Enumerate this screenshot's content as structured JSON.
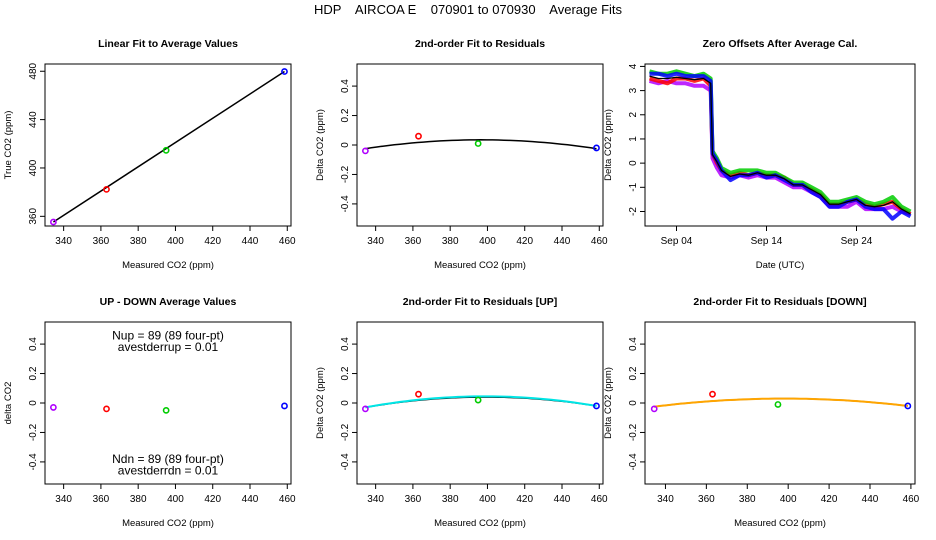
{
  "title": "HDP    AIRCOA E    070901 to 070930    Average Fits",
  "colors": {
    "purple": "#b000ff",
    "red": "#ff0000",
    "green": "#00cc00",
    "blue": "#0000ff",
    "black": "#000000",
    "cyan": "#00e5e5",
    "orange": "#ffa500"
  },
  "chart_data": [
    {
      "id": "linear",
      "type": "scatter",
      "title": "Linear Fit to Average Values",
      "xlabel": "Measured CO2 (ppm)",
      "ylabel": "True CO2 (ppm)",
      "xlim": [
        330,
        462
      ],
      "ylim": [
        352,
        486
      ],
      "xticks": [
        340,
        360,
        380,
        400,
        420,
        440,
        460
      ],
      "yticks": [
        360,
        400,
        440,
        480
      ],
      "points": [
        {
          "x": 334.5,
          "y": 355.3,
          "c": "purple"
        },
        {
          "x": 363.0,
          "y": 382.3,
          "c": "red"
        },
        {
          "x": 395.0,
          "y": 414.6,
          "c": "green"
        },
        {
          "x": 458.5,
          "y": 479.8,
          "c": "blue"
        }
      ],
      "fit_lines": [
        {
          "c": "black",
          "x": [
            334.5,
            458.5
          ],
          "y": [
            355.3,
            479.8
          ]
        }
      ]
    },
    {
      "id": "resid",
      "type": "scatter",
      "title": "2nd-order Fit to Residuals",
      "xlabel": "Measured CO2 (ppm)",
      "ylabel": "Delta CO2 (ppm)",
      "xlim": [
        330,
        462
      ],
      "ylim": [
        -0.55,
        0.55
      ],
      "xticks": [
        340,
        360,
        380,
        400,
        420,
        440,
        460
      ],
      "yticks": [
        -0.4,
        -0.2,
        0.0,
        0.2,
        0.4
      ],
      "points": [
        {
          "x": 334.5,
          "y": -0.04,
          "c": "purple"
        },
        {
          "x": 363.0,
          "y": 0.06,
          "c": "red"
        },
        {
          "x": 395.0,
          "y": 0.01,
          "c": "green"
        },
        {
          "x": 458.5,
          "y": -0.02,
          "c": "blue"
        }
      ],
      "fit_lines": [
        {
          "c": "black",
          "x": [
            334.5,
            396.5,
            458.5
          ],
          "y": [
            -0.025,
            0.035,
            -0.025
          ]
        }
      ]
    },
    {
      "id": "zero",
      "type": "line",
      "title": "Zero Offsets After Average Cal.",
      "xlabel": "Date (UTC)",
      "ylabel": "Delta CO2 (ppm)",
      "xlim": [
        0.5,
        30.5
      ],
      "ylim": [
        -2.6,
        4.1
      ],
      "xticks": [
        {
          "v": 4,
          "label": "Sep 04"
        },
        {
          "v": 14,
          "label": "Sep 14"
        },
        {
          "v": 24,
          "label": "Sep 24"
        }
      ],
      "yticks": [
        -2,
        -1,
        0,
        1,
        2,
        3,
        4
      ],
      "series": [
        {
          "name": "purple",
          "c": "purple",
          "x": [
            1,
            2,
            3,
            4,
            5,
            6,
            7,
            7.8,
            8,
            8.5,
            9,
            10,
            11,
            12,
            13,
            14,
            15,
            16,
            17,
            18,
            19,
            20,
            21,
            22,
            23,
            24,
            25,
            26,
            27,
            28,
            29,
            30
          ],
          "y": [
            3.4,
            3.3,
            3.4,
            3.3,
            3.3,
            3.2,
            3.2,
            3.0,
            0.2,
            -0.2,
            -0.5,
            -0.6,
            -0.5,
            -0.6,
            -0.5,
            -0.6,
            -0.6,
            -0.8,
            -1.0,
            -1.0,
            -1.2,
            -1.4,
            -1.8,
            -1.8,
            -1.8,
            -1.6,
            -1.9,
            -1.9,
            -1.9,
            -1.8,
            -2.0,
            -2.1
          ]
        },
        {
          "name": "red",
          "c": "red",
          "x": [
            1,
            2,
            3,
            4,
            5,
            6,
            7,
            7.8,
            8,
            8.5,
            9,
            10,
            11,
            12,
            13,
            14,
            15,
            16,
            17,
            18,
            19,
            20,
            21,
            22,
            23,
            24,
            25,
            26,
            27,
            28,
            29,
            30
          ],
          "y": [
            3.5,
            3.4,
            3.3,
            3.5,
            3.5,
            3.4,
            3.5,
            3.2,
            0.4,
            0.0,
            -0.3,
            -0.5,
            -0.4,
            -0.5,
            -0.4,
            -0.5,
            -0.5,
            -0.6,
            -0.9,
            -0.9,
            -1.1,
            -1.3,
            -1.7,
            -1.7,
            -1.6,
            -1.5,
            -1.7,
            -1.8,
            -1.7,
            -1.6,
            -1.9,
            -2.1
          ]
        },
        {
          "name": "green",
          "c": "green",
          "x": [
            1,
            2,
            3,
            4,
            5,
            6,
            7,
            7.8,
            8,
            8.5,
            9,
            10,
            11,
            12,
            13,
            14,
            15,
            16,
            17,
            18,
            19,
            20,
            21,
            22,
            23,
            24,
            25,
            26,
            27,
            28,
            29,
            30
          ],
          "y": [
            3.8,
            3.7,
            3.7,
            3.8,
            3.7,
            3.6,
            3.7,
            3.5,
            0.5,
            0.2,
            -0.2,
            -0.4,
            -0.3,
            -0.3,
            -0.3,
            -0.4,
            -0.4,
            -0.6,
            -0.8,
            -0.8,
            -1.0,
            -1.2,
            -1.6,
            -1.6,
            -1.5,
            -1.4,
            -1.6,
            -1.7,
            -1.6,
            -1.4,
            -1.8,
            -2.0
          ]
        },
        {
          "name": "blue",
          "c": "blue",
          "x": [
            1,
            2,
            3,
            4,
            5,
            6,
            7,
            7.8,
            8,
            8.5,
            9,
            10,
            11,
            12,
            13,
            14,
            15,
            16,
            17,
            18,
            19,
            20,
            21,
            22,
            23,
            24,
            25,
            26,
            27,
            28,
            29,
            30
          ],
          "y": [
            3.7,
            3.7,
            3.6,
            3.7,
            3.6,
            3.6,
            3.6,
            3.4,
            0.4,
            0.1,
            -0.3,
            -0.7,
            -0.5,
            -0.5,
            -0.4,
            -0.6,
            -0.5,
            -0.7,
            -0.9,
            -0.9,
            -1.2,
            -1.4,
            -1.8,
            -1.8,
            -1.6,
            -1.5,
            -1.8,
            -1.9,
            -1.9,
            -2.3,
            -2.0,
            -2.2
          ]
        },
        {
          "name": "black",
          "c": "black",
          "x": [
            1,
            2,
            3,
            4,
            5,
            6,
            7,
            7.8,
            8,
            8.5,
            9,
            10,
            11,
            12,
            13,
            14,
            15,
            16,
            17,
            18,
            19,
            20,
            21,
            22,
            23,
            24,
            25,
            26,
            27,
            28,
            29,
            30
          ],
          "y": [
            3.6,
            3.5,
            3.5,
            3.55,
            3.5,
            3.45,
            3.5,
            3.3,
            0.35,
            0.05,
            -0.3,
            -0.55,
            -0.45,
            -0.5,
            -0.4,
            -0.5,
            -0.5,
            -0.65,
            -0.9,
            -0.9,
            -1.1,
            -1.3,
            -1.7,
            -1.7,
            -1.6,
            -1.5,
            -1.75,
            -1.8,
            -1.75,
            -1.6,
            -1.9,
            -2.1
          ]
        }
      ]
    },
    {
      "id": "updown",
      "type": "scatter",
      "title": "UP - DOWN Average Values",
      "xlabel": "Measured CO2 (ppm)",
      "ylabel": "delta CO2",
      "xlim": [
        330,
        462
      ],
      "ylim": [
        -0.55,
        0.55
      ],
      "xticks": [
        340,
        360,
        380,
        400,
        420,
        440,
        460
      ],
      "yticks": [
        -0.4,
        -0.2,
        0.0,
        0.2,
        0.4
      ],
      "points": [
        {
          "x": 334.5,
          "y": -0.03,
          "c": "purple"
        },
        {
          "x": 363.0,
          "y": -0.04,
          "c": "red"
        },
        {
          "x": 395.0,
          "y": -0.05,
          "c": "green"
        },
        {
          "x": 458.5,
          "y": -0.02,
          "c": "blue"
        }
      ],
      "fit_lines": [],
      "annotations": [
        {
          "text": "Nup = 89 (89 four-pt)",
          "x": 396,
          "y": 0.46
        },
        {
          "text": "avestderrup =  0.01",
          "x": 396,
          "y": 0.38
        },
        {
          "text": "Ndn = 89 (89 four-pt)",
          "x": 396,
          "y": -0.38
        },
        {
          "text": "avestderrdn =  0.01",
          "x": 396,
          "y": -0.46
        }
      ]
    },
    {
      "id": "resid-up",
      "type": "scatter",
      "title": "2nd-order Fit to Residuals [UP]",
      "xlabel": "Measured CO2 (ppm)",
      "ylabel": "Delta CO2 (ppm)",
      "xlim": [
        330,
        462
      ],
      "ylim": [
        -0.55,
        0.55
      ],
      "xticks": [
        340,
        360,
        380,
        400,
        420,
        440,
        460
      ],
      "yticks": [
        -0.4,
        -0.2,
        0.0,
        0.2,
        0.4
      ],
      "points": [
        {
          "x": 334.5,
          "y": -0.04,
          "c": "purple"
        },
        {
          "x": 363.0,
          "y": 0.06,
          "c": "red"
        },
        {
          "x": 395.0,
          "y": 0.02,
          "c": "green"
        },
        {
          "x": 458.5,
          "y": -0.02,
          "c": "blue"
        }
      ],
      "fit_lines": [
        {
          "c": "black",
          "x": [
            334.5,
            396.5,
            458.5
          ],
          "y": [
            -0.03,
            0.04,
            -0.02
          ]
        },
        {
          "c": "cyan",
          "x": [
            334.5,
            396.5,
            458.5
          ],
          "y": [
            -0.03,
            0.045,
            -0.02
          ]
        }
      ]
    },
    {
      "id": "resid-down",
      "type": "scatter",
      "title": "2nd-order Fit to Residuals [DOWN]",
      "xlabel": "Measured CO2 (ppm)",
      "ylabel": "Delta CO2 (ppm)",
      "xlim": [
        330,
        462
      ],
      "ylim": [
        -0.55,
        0.55
      ],
      "xticks": [
        340,
        360,
        380,
        400,
        420,
        440,
        460
      ],
      "yticks": [
        -0.4,
        -0.2,
        0.0,
        0.2,
        0.4
      ],
      "points": [
        {
          "x": 334.5,
          "y": -0.04,
          "c": "purple"
        },
        {
          "x": 363.0,
          "y": 0.06,
          "c": "red"
        },
        {
          "x": 395.0,
          "y": -0.01,
          "c": "green"
        },
        {
          "x": 458.5,
          "y": -0.02,
          "c": "blue"
        }
      ],
      "fit_lines": [
        {
          "c": "black",
          "x": [
            334.5,
            396.5,
            458.5
          ],
          "y": [
            -0.025,
            0.03,
            -0.02
          ]
        },
        {
          "c": "orange",
          "x": [
            334.5,
            396.5,
            458.5
          ],
          "y": [
            -0.025,
            0.03,
            -0.02
          ]
        }
      ]
    }
  ]
}
